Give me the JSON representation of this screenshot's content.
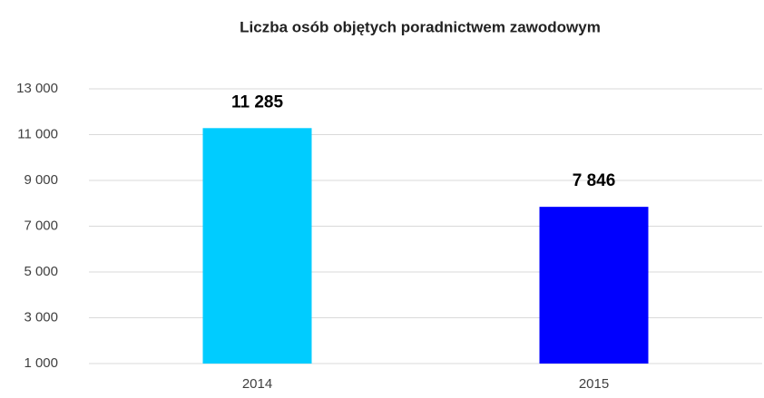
{
  "chart_data": {
    "type": "bar",
    "title": "Liczba osób objętych poradnictwem zawodowym",
    "categories": [
      "2014",
      "2015"
    ],
    "values": [
      11285,
      7846
    ],
    "value_labels": [
      "11 285",
      "7 846"
    ],
    "colors": [
      "#00ccff",
      "#0000ff"
    ],
    "ylim": [
      1000,
      13000
    ],
    "yticks": [
      {
        "value": 1000,
        "label": "1 000"
      },
      {
        "value": 3000,
        "label": "3 000"
      },
      {
        "value": 5000,
        "label": "5 000"
      },
      {
        "value": 7000,
        "label": "7 000"
      },
      {
        "value": 9000,
        "label": "9 000"
      },
      {
        "value": 11000,
        "label": "11 000"
      },
      {
        "value": 13000,
        "label": "13 000"
      }
    ],
    "grid": true
  }
}
